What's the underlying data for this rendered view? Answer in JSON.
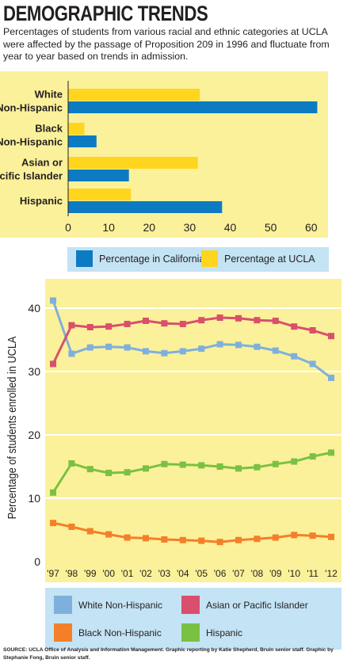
{
  "header": {
    "title": "DEMOGRAPHIC TRENDS",
    "subtitle": "Percentages of students from various racial and ethnic categories at UCLA were affected by the passage of Proposition 209 in 1996 and fluctuate from year to year based on trends in admission."
  },
  "source": "SOURCE: UCLA Office of Analysis and Information Management. Graphic reporting by Katie Shepherd, Bruin senior staff. Graphic by Stephanie Fong, Bruin senior staff.",
  "chart_data": [
    {
      "type": "bar",
      "orientation": "horizontal",
      "categories": [
        [
          "White",
          "Non-Hispanic"
        ],
        [
          "Black",
          "Non-Hispanic"
        ],
        [
          "Asian or",
          "Pacific Islander"
        ],
        [
          "Hispanic"
        ]
      ],
      "series": [
        {
          "name": "Percentage at UCLA",
          "color": "#ffd51e",
          "values": [
            32.5,
            4,
            32,
            15.5
          ]
        },
        {
          "name": "Percentage in California",
          "color": "#0d7bc1",
          "values": [
            61.5,
            7,
            15,
            38
          ]
        }
      ],
      "xlim": [
        0,
        65
      ],
      "xticks": [
        "0",
        "10",
        "20",
        "30",
        "40",
        "50",
        "60"
      ],
      "xtick_values": [
        0,
        10,
        20,
        30,
        40,
        50,
        60
      ],
      "legend": [
        {
          "label": "Percentage in California",
          "color": "#0d7bc1"
        },
        {
          "label": "Percentage at UCLA",
          "color": "#ffd51e"
        }
      ],
      "legend_position": "bottom",
      "grid": false,
      "background": "#fbf19a"
    },
    {
      "type": "line",
      "x": [
        "'97",
        "'98",
        "'99",
        "'00",
        "'01",
        "'02",
        "'03",
        "'04",
        "'05",
        "'06",
        "'07",
        "'08",
        "'09",
        "'10",
        "'11",
        "'12"
      ],
      "ylabel": "Percentage of students enrolled in UCLA",
      "ylim": [
        0,
        44
      ],
      "yticks": [
        "0",
        "10",
        "20",
        "30",
        "40"
      ],
      "ytick_values": [
        0,
        10,
        20,
        30,
        40
      ],
      "grid": true,
      "background": "#fbf19a",
      "series": [
        {
          "name": "White Non-Hispanic",
          "color": "#7fb0dd",
          "values": [
            41.2,
            32.8,
            33.8,
            33.9,
            33.8,
            33.2,
            32.9,
            33.2,
            33.6,
            34.3,
            34.2,
            33.9,
            33.3,
            32.4,
            31.2,
            29.0
          ]
        },
        {
          "name": "Asian or Pacific Islander",
          "color": "#d94f6d",
          "values": [
            31.2,
            37.3,
            37.0,
            37.1,
            37.5,
            38.0,
            37.6,
            37.5,
            38.1,
            38.5,
            38.4,
            38.1,
            38.0,
            37.1,
            36.5,
            35.6
          ]
        },
        {
          "name": "Black Non-Hispanic",
          "color": "#f47f2a",
          "values": [
            6.1,
            5.5,
            4.8,
            4.3,
            3.8,
            3.7,
            3.5,
            3.4,
            3.3,
            3.1,
            3.4,
            3.6,
            3.8,
            4.2,
            4.1,
            3.9
          ]
        },
        {
          "name": "Hispanic",
          "color": "#7ac142",
          "values": [
            10.9,
            15.5,
            14.6,
            14.0,
            14.1,
            14.7,
            15.4,
            15.3,
            15.2,
            15.0,
            14.7,
            14.9,
            15.4,
            15.8,
            16.6,
            17.2
          ]
        }
      ],
      "legend": [
        {
          "label": "White Non-Hispanic",
          "color": "#7fb0dd"
        },
        {
          "label": "Asian or Pacific Islander",
          "color": "#d94f6d"
        },
        {
          "label": "Black Non-Hispanic",
          "color": "#f47f2a"
        },
        {
          "label": "Hispanic",
          "color": "#7ac142"
        }
      ],
      "legend_position": "bottom"
    }
  ]
}
